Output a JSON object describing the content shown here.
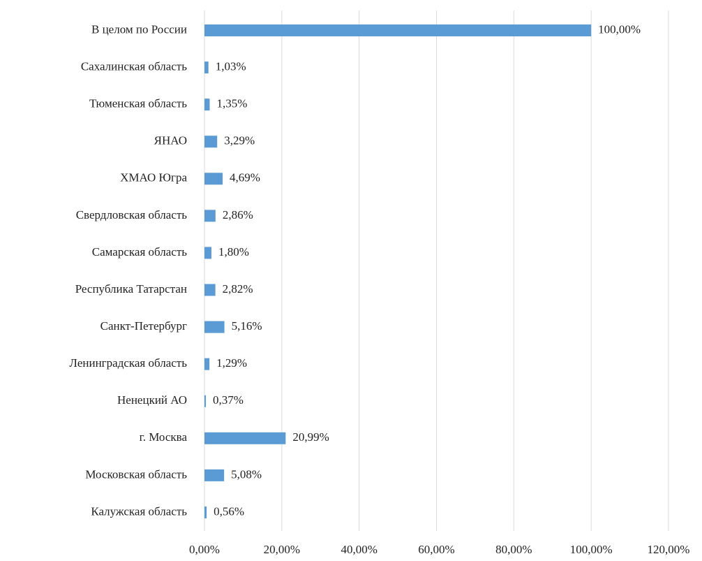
{
  "chart_data": {
    "type": "bar",
    "orientation": "horizontal",
    "categories": [
      "В целом по России",
      "Сахалинская область",
      "Тюменская область",
      "ЯНАО",
      "ХМАО Югра",
      "Свердловская область",
      "Самарская область",
      "Республика Татарстан",
      "Санкт-Петербург",
      "Ленинградская область",
      "Ненецкий АО",
      "г. Москва",
      "Московская область",
      "Калужская область"
    ],
    "values": [
      100,
      1.03,
      1.35,
      3.29,
      4.69,
      2.86,
      1.8,
      2.82,
      5.16,
      1.29,
      0.37,
      20.99,
      5.08,
      0.56
    ],
    "value_labels": [
      "100,00%",
      "1,03%",
      "1,35%",
      "3,29%",
      "4,69%",
      "2,86%",
      "1,80%",
      "2,82%",
      "5,16%",
      "1,29%",
      "0,37%",
      "20,99%",
      "5,08%",
      "0,56%"
    ],
    "color": "#5b9bd5",
    "xlim": [
      0,
      120
    ],
    "xticks": [
      {
        "value": 0,
        "label": "0,00%"
      },
      {
        "value": 20,
        "label": "20,00%"
      },
      {
        "value": 40,
        "label": "40,00%"
      },
      {
        "value": 60,
        "label": "60,00%"
      },
      {
        "value": 80,
        "label": "80,00%"
      },
      {
        "value": 100,
        "label": "100,00%"
      },
      {
        "value": 120,
        "label": "120,00%"
      }
    ],
    "grid": true
  }
}
